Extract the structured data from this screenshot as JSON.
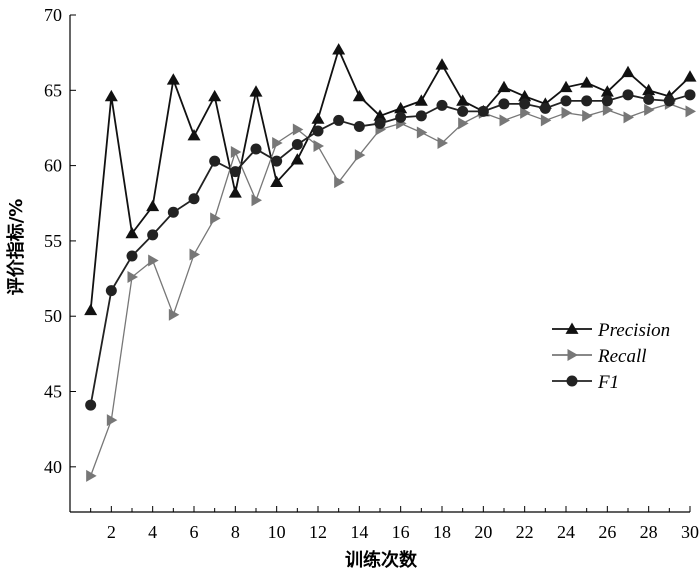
{
  "chart_data": {
    "type": "line",
    "title": "",
    "xlabel": "训练次数",
    "ylabel": "评价指标/%",
    "xlim": [
      0,
      30
    ],
    "ylim": [
      37,
      70
    ],
    "x_ticks": [
      2,
      4,
      6,
      8,
      10,
      12,
      14,
      16,
      18,
      20,
      22,
      24,
      26,
      28,
      30
    ],
    "y_ticks": [
      40,
      45,
      50,
      55,
      60,
      65,
      70
    ],
    "grid": false,
    "legend_position": "right-middle",
    "x": [
      1,
      2,
      3,
      4,
      5,
      6,
      7,
      8,
      9,
      10,
      11,
      12,
      13,
      14,
      15,
      16,
      17,
      18,
      19,
      20,
      21,
      22,
      23,
      24,
      25,
      26,
      27,
      28,
      29,
      30
    ],
    "series": [
      {
        "name": "Precision",
        "color": "#111111",
        "marker": "triangle-up",
        "values": [
          50.4,
          64.6,
          55.5,
          57.3,
          65.7,
          62.0,
          64.6,
          58.2,
          64.9,
          58.9,
          60.4,
          63.1,
          67.7,
          64.6,
          63.3,
          63.8,
          64.3,
          66.7,
          64.3,
          63.6,
          65.2,
          64.6,
          64.1,
          65.2,
          65.5,
          64.9,
          66.2,
          65.0,
          64.6,
          65.9
        ]
      },
      {
        "name": "Recall",
        "color": "#777777",
        "marker": "triangle-right",
        "values": [
          39.4,
          43.1,
          52.6,
          53.7,
          50.1,
          54.1,
          56.5,
          60.9,
          57.7,
          61.5,
          62.4,
          61.3,
          58.9,
          60.7,
          62.4,
          62.8,
          62.2,
          61.5,
          62.8,
          63.5,
          63.0,
          63.5,
          63.0,
          63.5,
          63.3,
          63.7,
          63.2,
          63.7,
          64.1,
          63.6
        ]
      },
      {
        "name": "F1",
        "color": "#222222",
        "marker": "circle",
        "values": [
          44.1,
          51.7,
          54.0,
          55.4,
          56.9,
          57.8,
          60.3,
          59.6,
          61.1,
          60.3,
          61.4,
          62.3,
          63.0,
          62.6,
          62.8,
          63.2,
          63.3,
          64.0,
          63.6,
          63.6,
          64.1,
          64.1,
          63.8,
          64.3,
          64.3,
          64.3,
          64.7,
          64.4,
          64.3,
          64.7
        ]
      }
    ]
  }
}
